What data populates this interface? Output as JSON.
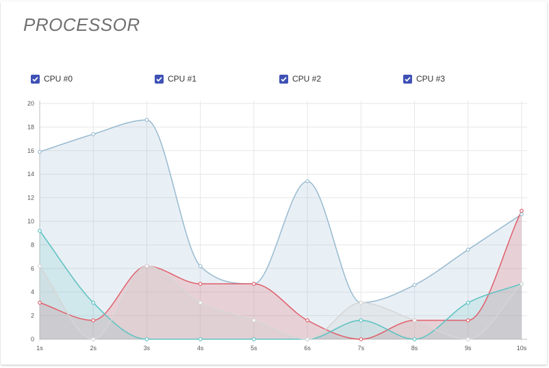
{
  "title": "PROCESSOR",
  "legend": [
    {
      "label": "CPU #0",
      "checked": true
    },
    {
      "label": "CPU #1",
      "checked": true
    },
    {
      "label": "CPU #2",
      "checked": true
    },
    {
      "label": "CPU #3",
      "checked": true
    }
  ],
  "colors": {
    "checkbox": "#3f51b5",
    "grid": "#e6e6e6",
    "axis": "#bdbdbd"
  },
  "chart_data": {
    "type": "area",
    "x": [
      "1s",
      "2s",
      "3s",
      "4s",
      "5s",
      "6s",
      "7s",
      "8s",
      "9s",
      "10s"
    ],
    "y_ticks": [
      "0",
      "2",
      "4",
      "6",
      "8",
      "10",
      "12",
      "14",
      "16",
      "18",
      "20"
    ],
    "ylim": [
      0,
      20
    ],
    "grid": true,
    "series": [
      {
        "values": [
          15.9,
          17.4,
          18.6,
          6.2,
          4.7,
          13.4,
          3.1,
          4.6,
          7.6,
          10.6
        ],
        "color": "#9bbcd1",
        "fill": "rgba(155,188,209,0.22)"
      },
      {
        "values": [
          3.1,
          1.6,
          6.2,
          4.7,
          4.7,
          1.6,
          0.0,
          1.6,
          1.6,
          10.9
        ],
        "color": "#e0636f",
        "fill": "rgba(224,99,111,0.22)"
      },
      {
        "values": [
          9.2,
          3.1,
          0.0,
          0.0,
          0.0,
          0.0,
          1.6,
          0.0,
          3.1,
          4.7
        ],
        "color": "#5fc3c3",
        "fill": "rgba(95,195,195,0.18)"
      },
      {
        "values": [
          6.2,
          0.0,
          6.2,
          3.1,
          1.6,
          0.0,
          3.1,
          1.6,
          0.0,
          4.7
        ],
        "color": "#d6d6d6",
        "fill": "rgba(200,200,200,0.22)"
      }
    ]
  }
}
